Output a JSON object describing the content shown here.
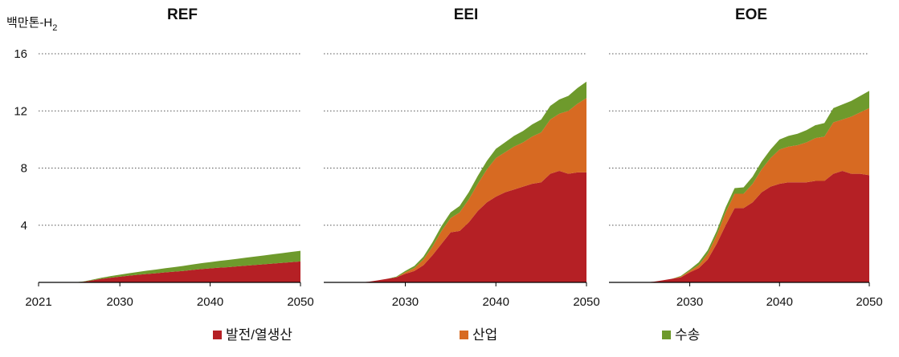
{
  "unit_label": {
    "main": "백만톤-H",
    "sub": "2"
  },
  "colors": {
    "power": "#b52025",
    "industry": "#d76a22",
    "transport": "#6e9a2c",
    "axis": "#000000",
    "grid": "#555555"
  },
  "legend": [
    {
      "label": "발전/열생산",
      "color": "#b52025"
    },
    {
      "label": "산업",
      "color": "#d76a22"
    },
    {
      "label": "수송",
      "color": "#6e9a2c"
    }
  ],
  "chart_data": [
    {
      "type": "area",
      "title": "REF",
      "x": [
        2021,
        2022,
        2023,
        2024,
        2025,
        2026,
        2027,
        2028,
        2029,
        2030,
        2031,
        2032,
        2033,
        2034,
        2035,
        2036,
        2037,
        2038,
        2039,
        2040,
        2041,
        2042,
        2043,
        2044,
        2045,
        2046,
        2047,
        2048,
        2049,
        2050
      ],
      "series": [
        {
          "name": "발전/열생산",
          "values": [
            0,
            0,
            0,
            0,
            0,
            0.05,
            0.15,
            0.25,
            0.33,
            0.4,
            0.47,
            0.53,
            0.59,
            0.64,
            0.7,
            0.75,
            0.8,
            0.87,
            0.93,
            0.98,
            1.03,
            1.07,
            1.12,
            1.17,
            1.22,
            1.27,
            1.32,
            1.37,
            1.42,
            1.47
          ]
        },
        {
          "name": "산업",
          "values": [
            0,
            0,
            0,
            0,
            0,
            0,
            0,
            0,
            0,
            0,
            0,
            0,
            0,
            0,
            0,
            0,
            0,
            0,
            0,
            0,
            0,
            0,
            0,
            0,
            0,
            0,
            0,
            0,
            0,
            0
          ]
        },
        {
          "name": "수송",
          "values": [
            0,
            0,
            0,
            0,
            0,
            0.02,
            0.05,
            0.08,
            0.11,
            0.14,
            0.17,
            0.2,
            0.23,
            0.26,
            0.29,
            0.32,
            0.35,
            0.38,
            0.41,
            0.44,
            0.47,
            0.5,
            0.53,
            0.56,
            0.59,
            0.62,
            0.65,
            0.68,
            0.71,
            0.74
          ]
        }
      ],
      "ylim": [
        0,
        16
      ],
      "yticks": [
        4,
        8,
        12,
        16
      ],
      "xticks": [
        2021,
        2030,
        2040,
        2050
      ],
      "stacked": true
    },
    {
      "type": "area",
      "title": "EEI",
      "x": [
        2021,
        2022,
        2023,
        2024,
        2025,
        2026,
        2027,
        2028,
        2029,
        2030,
        2031,
        2032,
        2033,
        2034,
        2035,
        2036,
        2037,
        2038,
        2039,
        2040,
        2041,
        2042,
        2043,
        2044,
        2045,
        2046,
        2047,
        2048,
        2049,
        2050
      ],
      "series": [
        {
          "name": "발전/열생산",
          "values": [
            0,
            0,
            0,
            0,
            0,
            0.05,
            0.15,
            0.25,
            0.35,
            0.6,
            0.8,
            1.2,
            1.9,
            2.7,
            3.5,
            3.6,
            4.2,
            5.0,
            5.6,
            6.0,
            6.3,
            6.5,
            6.7,
            6.9,
            7.0,
            7.6,
            7.8,
            7.6,
            7.7,
            7.7
          ]
        },
        {
          "name": "산업",
          "values": [
            0,
            0,
            0,
            0,
            0,
            0,
            0,
            0,
            0,
            0.1,
            0.2,
            0.4,
            0.6,
            0.9,
            1.0,
            1.3,
            1.6,
            1.9,
            2.3,
            2.7,
            2.8,
            3.0,
            3.1,
            3.3,
            3.5,
            3.8,
            4.0,
            4.4,
            4.8,
            5.2
          ]
        },
        {
          "name": "수송",
          "values": [
            0,
            0,
            0,
            0,
            0,
            0,
            0,
            0,
            0.05,
            0.1,
            0.15,
            0.2,
            0.3,
            0.35,
            0.4,
            0.45,
            0.5,
            0.55,
            0.6,
            0.65,
            0.7,
            0.75,
            0.8,
            0.85,
            0.9,
            0.95,
            1.0,
            1.05,
            1.1,
            1.15
          ]
        }
      ],
      "ylim": [
        0,
        16
      ],
      "yticks": [
        4,
        8,
        12,
        16
      ],
      "xticks": [
        2030,
        2040,
        2050
      ],
      "stacked": true
    },
    {
      "type": "area",
      "title": "EOE",
      "x": [
        2021,
        2022,
        2023,
        2024,
        2025,
        2026,
        2027,
        2028,
        2029,
        2030,
        2031,
        2032,
        2033,
        2034,
        2035,
        2036,
        2037,
        2038,
        2039,
        2040,
        2041,
        2042,
        2043,
        2044,
        2045,
        2046,
        2047,
        2048,
        2049,
        2050
      ],
      "series": [
        {
          "name": "발전/열생산",
          "values": [
            0,
            0,
            0,
            0,
            0,
            0.05,
            0.15,
            0.25,
            0.35,
            0.7,
            1.0,
            1.6,
            2.7,
            4.0,
            5.2,
            5.2,
            5.6,
            6.3,
            6.7,
            6.9,
            7.0,
            7.0,
            7.0,
            7.1,
            7.1,
            7.6,
            7.8,
            7.6,
            7.6,
            7.5
          ]
        },
        {
          "name": "산업",
          "values": [
            0,
            0,
            0,
            0,
            0,
            0,
            0,
            0,
            0.05,
            0.1,
            0.2,
            0.4,
            0.6,
            0.9,
            1.0,
            1.0,
            1.3,
            1.6,
            2.0,
            2.4,
            2.5,
            2.6,
            2.8,
            3.0,
            3.1,
            3.6,
            3.6,
            4.0,
            4.3,
            4.7
          ]
        },
        {
          "name": "수송",
          "values": [
            0,
            0,
            0,
            0,
            0,
            0,
            0,
            0,
            0.05,
            0.1,
            0.2,
            0.25,
            0.3,
            0.35,
            0.4,
            0.45,
            0.5,
            0.55,
            0.6,
            0.7,
            0.75,
            0.8,
            0.85,
            0.9,
            0.95,
            1.0,
            1.05,
            1.1,
            1.15,
            1.2
          ]
        }
      ],
      "ylim": [
        0,
        16
      ],
      "yticks": [
        4,
        8,
        12,
        16
      ],
      "xticks": [
        2030,
        2040,
        2050
      ],
      "stacked": true
    }
  ]
}
